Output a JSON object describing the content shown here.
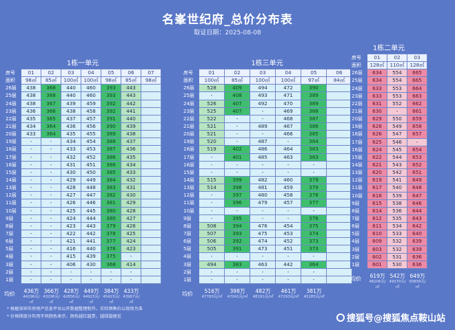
{
  "header": {
    "title": "名峯世纪府_总价分布表",
    "subtitle": "取证日期：2025-08-08"
  },
  "labels": {
    "room": "房号",
    "area": "面积",
    "avg": "均价"
  },
  "floors": [
    "26层",
    "25层",
    "24层",
    "23层",
    "22层",
    "21层",
    "20层",
    "19层",
    "18层",
    "17层",
    "16层",
    "15层",
    "14层",
    "13层",
    "12层",
    "11层",
    "10层",
    "9层",
    "8层",
    "7层",
    "6层",
    "5层",
    "4层",
    "3层",
    "2层",
    "1层"
  ],
  "buildings": [
    {
      "name": "1栋一单元",
      "rooms": [
        "01",
        "02",
        "03",
        "04",
        "05",
        "06",
        "07"
      ],
      "areas": [
        "98㎡",
        "85㎡",
        "100㎡",
        "100㎡",
        "98㎡",
        "85㎡",
        "98㎡"
      ],
      "prices": [
        [
          "438",
          "368",
          "440",
          "460",
          "393",
          "443",
          ""
        ],
        [
          "438",
          "368",
          "440",
          "460",
          "393",
          "443",
          ""
        ],
        [
          "438",
          "367",
          "439",
          "459",
          "392",
          "442",
          ""
        ],
        [
          "436",
          "366",
          "438",
          "458",
          "392",
          "441",
          ""
        ],
        [
          "435",
          "365",
          "437",
          "457",
          "391",
          "440",
          ""
        ],
        [
          "434",
          "364",
          "436",
          "456",
          "390",
          "439",
          ""
        ],
        [
          "433",
          "364",
          "435",
          "455",
          "389",
          "438",
          ""
        ],
        [
          "-",
          "-",
          "434",
          "454",
          "388",
          "437",
          ""
        ],
        [
          "-",
          "-",
          "433",
          "453",
          "387",
          "436",
          ""
        ],
        [
          "-",
          "-",
          "432",
          "452",
          "386",
          "435",
          ""
        ],
        [
          "-",
          "-",
          "431",
          "451",
          "386",
          "434",
          ""
        ],
        [
          "-",
          "-",
          "430",
          "450",
          "385",
          "433",
          ""
        ],
        [
          "-",
          "-",
          "429",
          "449",
          "384",
          "432",
          ""
        ],
        [
          "-",
          "-",
          "428",
          "448",
          "383",
          "431",
          ""
        ],
        [
          "-",
          "-",
          "427",
          "447",
          "382",
          "430",
          ""
        ],
        [
          "-",
          "-",
          "426",
          "446",
          "381",
          "429",
          ""
        ],
        [
          "-",
          "-",
          "425",
          "445",
          "380",
          "428",
          ""
        ],
        [
          "-",
          "-",
          "424",
          "444",
          "380",
          "427",
          ""
        ],
        [
          "-",
          "-",
          "423",
          "443",
          "379",
          "426",
          ""
        ],
        [
          "-",
          "-",
          "422",
          "442",
          "378",
          "425",
          ""
        ],
        [
          "-",
          "-",
          "421",
          "441",
          "377",
          "424",
          ""
        ],
        [
          "-",
          "-",
          "416",
          "440",
          "376",
          "423",
          ""
        ],
        [
          "-",
          "-",
          "415",
          "439",
          "375",
          "-",
          ""
        ],
        [
          "-",
          "-",
          "406",
          "430",
          "368",
          "414",
          ""
        ],
        [
          "-",
          "-",
          "-",
          "-",
          "-",
          "-",
          ""
        ],
        [
          "-",
          "-",
          "-",
          "-",
          "-",
          "-",
          ""
        ]
      ],
      "avg": [
        {
          "total": "436万",
          "ppm": "44296元/㎡"
        },
        {
          "total": "366万",
          "ppm": "43296元/㎡"
        },
        {
          "total": "428万",
          "ppm": "42856元/㎡"
        },
        {
          "total": "449万",
          "ppm": "44923元/㎡"
        },
        {
          "total": "384万",
          "ppm": "45423元/㎡"
        },
        {
          "total": "433万",
          "ppm": "43967元/㎡"
        }
      ]
    },
    {
      "name": "1栋三单元",
      "rooms": [
        "01",
        "02",
        "03",
        "04",
        "05",
        "06"
      ],
      "areas": [
        "100㎡",
        "85㎡",
        "100㎡",
        "100㎡",
        "97㎡",
        "84㎡"
      ],
      "prices": [
        [
          "528",
          "409",
          "494",
          "472",
          "390",
          ""
        ],
        [
          "-",
          "408",
          "493",
          "471",
          "389",
          ""
        ],
        [
          "526",
          "407",
          "492",
          "470",
          "389",
          ""
        ],
        [
          "525",
          "407",
          "-",
          "469",
          "388",
          ""
        ],
        [
          "522",
          "-",
          "-",
          "468",
          "387",
          ""
        ],
        [
          "521",
          "-",
          "489",
          "467",
          "386",
          ""
        ],
        [
          "521",
          "-",
          "-",
          "466",
          "385",
          ""
        ],
        [
          "520",
          "-",
          "487",
          "-",
          "384",
          ""
        ],
        [
          "519",
          "402",
          "486",
          "464",
          "383",
          ""
        ],
        [
          "-",
          "401",
          "485",
          "463",
          "383",
          ""
        ],
        [
          "-",
          "-",
          "-",
          "-",
          "-",
          ""
        ],
        [
          "-",
          "-",
          "-",
          "-",
          "-",
          ""
        ],
        [
          "515",
          "399",
          "482",
          "460",
          "379",
          ""
        ],
        [
          "514",
          "398",
          "481",
          "459",
          "379",
          ""
        ],
        [
          "-",
          "397",
          "480",
          "458",
          "378",
          ""
        ],
        [
          "-",
          "396",
          "479",
          "457",
          "377",
          ""
        ],
        [
          "-",
          "-",
          "-",
          "-",
          "-",
          ""
        ],
        [
          "-",
          "395",
          "-",
          "-",
          "376",
          ""
        ],
        [
          "508",
          "394",
          "476",
          "454",
          "375",
          ""
        ],
        [
          "507",
          "393",
          "475",
          "453",
          "374",
          ""
        ],
        [
          "506",
          "392",
          "474",
          "452",
          "373",
          ""
        ],
        [
          "505",
          "391",
          "473",
          "451",
          "373",
          ""
        ],
        [
          "-",
          "-",
          "-",
          "-",
          "-",
          ""
        ],
        [
          "494",
          "383",
          "463",
          "442",
          "364",
          ""
        ],
        [
          "-",
          "-",
          "-",
          "-",
          "-",
          ""
        ],
        [
          "-",
          "-",
          "-",
          "-",
          "-",
          ""
        ]
      ],
      "avg": [
        {
          "total": "516万",
          "ppm": "47783元/㎡"
        },
        {
          "total": "398万",
          "ppm": "47041元/㎡"
        },
        {
          "total": "482万",
          "ppm": "48191元/㎡"
        },
        {
          "total": "461万",
          "ppm": "47293元/㎡"
        },
        {
          "total": "381万",
          "ppm": "45285元/㎡"
        }
      ]
    },
    {
      "name": "1栋二单元",
      "rooms": [
        "01",
        "02",
        "03"
      ],
      "areas": [
        "128㎡",
        "110㎡",
        "128㎡"
      ],
      "prices": [
        [
          "634",
          "554",
          "665"
        ],
        [
          "634",
          "554",
          "665"
        ],
        [
          "633",
          "553",
          "664"
        ],
        [
          "633",
          "553",
          "663"
        ],
        [
          "631",
          "552",
          "662"
        ],
        [
          "630",
          "-",
          "661"
        ],
        [
          "629",
          "550",
          "659"
        ],
        [
          "628",
          "549",
          "658"
        ],
        [
          "626",
          "547",
          "657"
        ],
        [
          "625",
          "546",
          "-"
        ],
        [
          "624",
          "545",
          "654"
        ],
        [
          "622",
          "544",
          "653"
        ],
        [
          "621",
          "543",
          "652"
        ],
        [
          "620",
          "542",
          "651"
        ],
        [
          "619",
          "541",
          "649"
        ],
        [
          "617",
          "540",
          "648"
        ],
        [
          "616",
          "539",
          "647"
        ],
        [
          "615",
          "538",
          "646"
        ],
        [
          "614",
          "536",
          "644"
        ],
        [
          "612",
          "535",
          "643"
        ],
        [
          "611",
          "534",
          "642"
        ],
        [
          "610",
          "533",
          "640"
        ],
        [
          "609",
          "532",
          "639"
        ],
        [
          "603",
          "532",
          "639"
        ],
        [
          "602",
          "531",
          "636"
        ],
        [
          "601",
          "530",
          "636"
        ]
      ],
      "avg": [
        {
          "total": "619万",
          "ppm": "48206元/㎡"
        },
        {
          "total": "542万",
          "ppm": "49370元/㎡"
        },
        {
          "total": "649万",
          "ppm": "50856元/㎡"
        }
      ]
    }
  ],
  "footnotes": [
    "* 根据深圳市房地产信息平台公开数据整理制作，实际销售价以现场为准",
    "* 价格梯度分布用不同颜色表示，颜色越红越贵，越绿越便宜"
  ],
  "watermark": "搜狐号@搜狐焦点鞍山站"
}
